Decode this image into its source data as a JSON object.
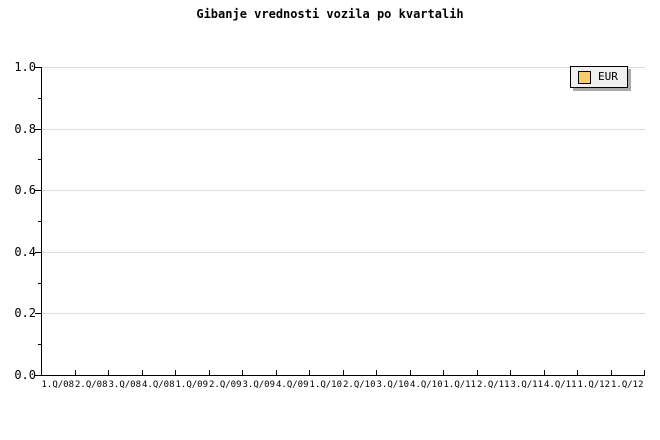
{
  "page": {
    "background_color": "#ffffff"
  },
  "title": "Gibanje vrednosti vozila po kvartalih",
  "legend": {
    "label": "EUR",
    "swatch_color": "#fbcb6e",
    "background_color": "#f0f0f0",
    "shadow_color": "#a9a9a9"
  },
  "chart_data": {
    "type": "line",
    "title": "Gibanje vrednosti vozila po kvartalih",
    "categories": [
      "1.Q/08",
      "2.Q/08",
      "3.Q/08",
      "4.Q/08",
      "1.Q/09",
      "2.Q/09",
      "3.Q/09",
      "4.Q/09",
      "1.Q/10",
      "2.Q/10",
      "3.Q/10",
      "4.Q/10",
      "1.Q/11",
      "2.Q/11",
      "3.Q/11",
      "4.Q/11",
      "1.Q/12",
      "1.Q/12"
    ],
    "series": [
      {
        "name": "EUR",
        "color": "#fbcb6e",
        "values": []
      }
    ],
    "plot_is_empty": true,
    "xlabel": "",
    "ylabel": "",
    "ylim": [
      0.0,
      1.0
    ],
    "yticks": [
      0.0,
      0.2,
      0.4,
      0.6,
      0.8,
      1.0
    ],
    "ytick_labels": [
      "0.0",
      "0.2",
      "0.4",
      "0.6",
      "0.8",
      "1.0"
    ],
    "minor_ytick_step": 0.1,
    "grid": "horizontal-major",
    "gridline_color": "#dcdcdc",
    "axis_color": "#000000",
    "legend_position": "top-right"
  }
}
